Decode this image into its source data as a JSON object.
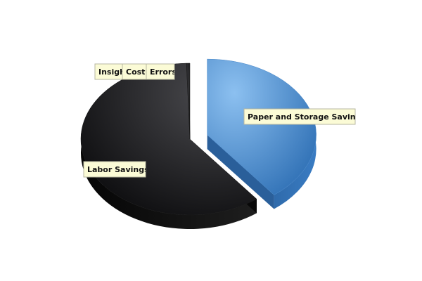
{
  "chart_data": {
    "type": "pie",
    "title": "",
    "slices": [
      {
        "label": "Paper and Storage Savings",
        "value": 39.5,
        "color": "#5f9fdc",
        "color_dark": "#2f6aa9",
        "exploded": true
      },
      {
        "label": "Labor Savings",
        "value": 60.0,
        "color": "#2a2a2c",
        "color_dark": "#0b0b0c",
        "exploded": false
      },
      {
        "label": "Insight",
        "value": 0.3,
        "color": "#2a2a2c",
        "color_dark": "#0b0b0c",
        "exploded": false
      },
      {
        "label": "Cost",
        "value": 0.1,
        "color": "#2a2a2c",
        "color_dark": "#0b0b0c",
        "exploded": false
      },
      {
        "label": "Errors",
        "value": 0.1,
        "color": "#2a2a2c",
        "color_dark": "#0b0b0c",
        "exploded": false
      }
    ],
    "legend": "none",
    "style": "3d-exploded"
  }
}
